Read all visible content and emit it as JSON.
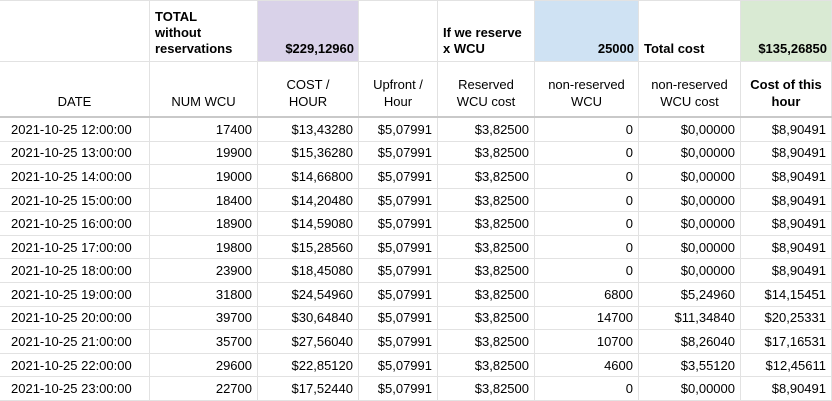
{
  "colors": {
    "purple_fill": "#d9d2e9",
    "blue_fill": "#cfe2f3",
    "green_fill": "#d9ead3",
    "gridline": "#e2e2e2",
    "header_divider": "#c9c9c9"
  },
  "band": {
    "empty_date": "",
    "total_label": "TOTAL\nwithout\nreservations",
    "total_per_hour_value": "$229,12960",
    "empty_upfront": "",
    "reserve_label": "If we reserve\nx WCU",
    "reserved_wcu_value": "25000",
    "total_cost_label": "Total cost",
    "total_cost_value": "$135,26850"
  },
  "columns": [
    "DATE",
    "NUM WCU",
    "COST /\nHOUR",
    "Upfront /\nHour",
    "Reserved\nWCU cost",
    "non-reserved\nWCU",
    "non-reserved\nWCU cost",
    "Cost of this\nhour"
  ],
  "rows": [
    [
      "2021-10-25 12:00:00",
      "17400",
      "$13,43280",
      "$5,07991",
      "$3,82500",
      "0",
      "$0,00000",
      "$8,90491"
    ],
    [
      "2021-10-25 13:00:00",
      "19900",
      "$15,36280",
      "$5,07991",
      "$3,82500",
      "0",
      "$0,00000",
      "$8,90491"
    ],
    [
      "2021-10-25 14:00:00",
      "19000",
      "$14,66800",
      "$5,07991",
      "$3,82500",
      "0",
      "$0,00000",
      "$8,90491"
    ],
    [
      "2021-10-25 15:00:00",
      "18400",
      "$14,20480",
      "$5,07991",
      "$3,82500",
      "0",
      "$0,00000",
      "$8,90491"
    ],
    [
      "2021-10-25 16:00:00",
      "18900",
      "$14,59080",
      "$5,07991",
      "$3,82500",
      "0",
      "$0,00000",
      "$8,90491"
    ],
    [
      "2021-10-25 17:00:00",
      "19800",
      "$15,28560",
      "$5,07991",
      "$3,82500",
      "0",
      "$0,00000",
      "$8,90491"
    ],
    [
      "2021-10-25 18:00:00",
      "23900",
      "$18,45080",
      "$5,07991",
      "$3,82500",
      "0",
      "$0,00000",
      "$8,90491"
    ],
    [
      "2021-10-25 19:00:00",
      "31800",
      "$24,54960",
      "$5,07991",
      "$3,82500",
      "6800",
      "$5,24960",
      "$14,15451"
    ],
    [
      "2021-10-25 20:00:00",
      "39700",
      "$30,64840",
      "$5,07991",
      "$3,82500",
      "14700",
      "$11,34840",
      "$20,25331"
    ],
    [
      "2021-10-25 21:00:00",
      "35700",
      "$27,56040",
      "$5,07991",
      "$3,82500",
      "10700",
      "$8,26040",
      "$17,16531"
    ],
    [
      "2021-10-25 22:00:00",
      "29600",
      "$22,85120",
      "$5,07991",
      "$3,82500",
      "4600",
      "$3,55120",
      "$12,45611"
    ],
    [
      "2021-10-25 23:00:00",
      "22700",
      "$17,52440",
      "$5,07991",
      "$3,82500",
      "0",
      "$0,00000",
      "$8,90491"
    ]
  ]
}
